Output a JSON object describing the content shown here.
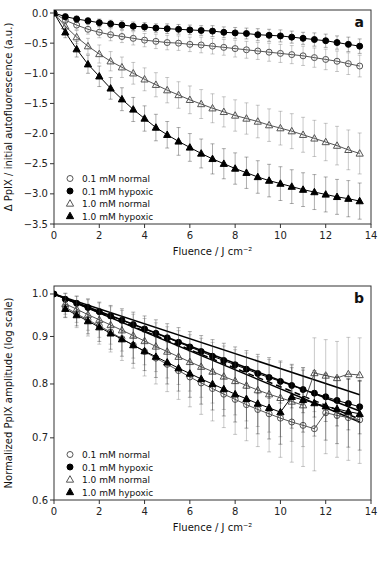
{
  "chart_data": [
    {
      "type": "line",
      "title": "a",
      "y_label": "Δ PpIX / initial autofluorescence (a.u.)",
      "x_label": "Fluence / J cm⁻²",
      "xlim": [
        0,
        14
      ],
      "ylim": [
        -3.5,
        0.05
      ],
      "xticks": [
        0,
        2,
        4,
        6,
        8,
        10,
        12,
        14
      ],
      "yticks": [
        {
          "value": 0.0,
          "label": "0.0"
        },
        {
          "value": -0.5,
          "label": "−0.5"
        },
        {
          "value": -1.0,
          "label": "−1.0"
        },
        {
          "value": -1.5,
          "label": "−1.5"
        },
        {
          "value": -2.0,
          "label": "−2.0"
        },
        {
          "value": -2.5,
          "label": "−2.5"
        },
        {
          "value": -3.0,
          "label": "−3.0"
        },
        {
          "value": -3.5,
          "label": "−3.5"
        }
      ],
      "legend": "lower left",
      "series": [
        {
          "name": "0.1 mM normal",
          "color": "#555555",
          "marker": "circle-open",
          "x": [
            0.0,
            0.5,
            1.0,
            1.5,
            2.0,
            2.5,
            3.0,
            3.5,
            4.0,
            4.5,
            5.0,
            5.5,
            6.0,
            6.5,
            7.0,
            7.5,
            8.0,
            8.5,
            9.0,
            9.5,
            10.0,
            10.5,
            11.0,
            11.5,
            12.0,
            12.5,
            13.0,
            13.5
          ],
          "values": [
            0.0,
            -0.12,
            -0.2,
            -0.27,
            -0.32,
            -0.36,
            -0.39,
            -0.42,
            -0.45,
            -0.47,
            -0.49,
            -0.5,
            -0.52,
            -0.53,
            -0.55,
            -0.57,
            -0.59,
            -0.61,
            -0.63,
            -0.65,
            -0.67,
            -0.69,
            -0.71,
            -0.74,
            -0.77,
            -0.8,
            -0.84,
            -0.88
          ],
          "errors": [
            0.0,
            0.05,
            0.07,
            0.08,
            0.09,
            0.1,
            0.1,
            0.11,
            0.11,
            0.12,
            0.12,
            0.12,
            0.12,
            0.13,
            0.13,
            0.13,
            0.14,
            0.14,
            0.14,
            0.15,
            0.15,
            0.15,
            0.16,
            0.16,
            0.17,
            0.17,
            0.18,
            0.18
          ]
        },
        {
          "name": "0.1 mM hypoxic",
          "color": "#000000",
          "marker": "circle",
          "x": [
            0.0,
            0.5,
            1.0,
            1.5,
            2.0,
            2.5,
            3.0,
            3.5,
            4.0,
            4.5,
            5.0,
            5.5,
            6.0,
            6.5,
            7.0,
            7.5,
            8.0,
            8.5,
            9.0,
            9.5,
            10.0,
            10.5,
            11.0,
            11.5,
            12.0,
            12.5,
            13.0,
            13.5
          ],
          "values": [
            0.0,
            -0.06,
            -0.1,
            -0.13,
            -0.16,
            -0.18,
            -0.2,
            -0.22,
            -0.23,
            -0.25,
            -0.26,
            -0.27,
            -0.28,
            -0.29,
            -0.3,
            -0.32,
            -0.33,
            -0.34,
            -0.36,
            -0.37,
            -0.38,
            -0.4,
            -0.42,
            -0.44,
            -0.46,
            -0.49,
            -0.52,
            -0.55
          ],
          "errors": [
            0.0,
            0.04,
            0.05,
            0.05,
            0.06,
            0.06,
            0.07,
            0.07,
            0.07,
            0.07,
            0.08,
            0.08,
            0.08,
            0.08,
            0.09,
            0.09,
            0.09,
            0.09,
            0.1,
            0.1,
            0.1,
            0.1,
            0.1,
            0.11,
            0.11,
            0.11,
            0.12,
            0.12
          ]
        },
        {
          "name": "1.0 mM normal",
          "color": "#555555",
          "marker": "triangle-open",
          "x": [
            0.0,
            0.5,
            1.0,
            1.5,
            2.0,
            2.5,
            3.0,
            3.5,
            4.0,
            4.5,
            5.0,
            5.5,
            6.0,
            6.5,
            7.0,
            7.5,
            8.0,
            8.5,
            9.0,
            9.5,
            10.0,
            10.5,
            11.0,
            11.5,
            12.0,
            12.5,
            13.0,
            13.5
          ],
          "values": [
            0.0,
            -0.22,
            -0.4,
            -0.55,
            -0.68,
            -0.8,
            -0.9,
            -1.0,
            -1.1,
            -1.19,
            -1.28,
            -1.36,
            -1.44,
            -1.51,
            -1.58,
            -1.64,
            -1.7,
            -1.75,
            -1.8,
            -1.86,
            -1.91,
            -1.96,
            -2.02,
            -2.08,
            -2.14,
            -2.2,
            -2.27,
            -2.33
          ],
          "errors": [
            0.0,
            0.08,
            0.11,
            0.13,
            0.15,
            0.16,
            0.17,
            0.18,
            0.19,
            0.2,
            0.21,
            0.22,
            0.23,
            0.24,
            0.24,
            0.25,
            0.26,
            0.26,
            0.27,
            0.27,
            0.28,
            0.29,
            0.29,
            0.3,
            0.31,
            0.32,
            0.33,
            0.34
          ]
        },
        {
          "name": "1.0 mM hypoxic",
          "color": "#000000",
          "marker": "triangle",
          "x": [
            0.0,
            0.5,
            1.0,
            1.5,
            2.0,
            2.5,
            3.0,
            3.5,
            4.0,
            4.5,
            5.0,
            5.5,
            6.0,
            6.5,
            7.0,
            7.5,
            8.0,
            8.5,
            9.0,
            9.5,
            10.0,
            10.5,
            11.0,
            11.5,
            12.0,
            12.5,
            13.0,
            13.5
          ],
          "values": [
            0.0,
            -0.32,
            -0.6,
            -0.85,
            -1.05,
            -1.25,
            -1.43,
            -1.6,
            -1.75,
            -1.9,
            -2.02,
            -2.13,
            -2.23,
            -2.33,
            -2.42,
            -2.5,
            -2.58,
            -2.65,
            -2.72,
            -2.78,
            -2.83,
            -2.88,
            -2.93,
            -2.97,
            -3.01,
            -3.05,
            -3.08,
            -3.12
          ],
          "errors": [
            0.0,
            0.09,
            0.13,
            0.15,
            0.17,
            0.18,
            0.19,
            0.2,
            0.21,
            0.22,
            0.22,
            0.23,
            0.23,
            0.24,
            0.25,
            0.25,
            0.26,
            0.26,
            0.27,
            0.27,
            0.28,
            0.28,
            0.28,
            0.29,
            0.29,
            0.29,
            0.3,
            0.3
          ]
        }
      ]
    },
    {
      "type": "line",
      "title": "b",
      "y_label": "Normalized PpIX amplitude (log scale)",
      "x_label": "Fluence / J cm⁻²",
      "log": "y",
      "xlim": [
        0,
        14
      ],
      "ylim": [
        0.6,
        1.02
      ],
      "xticks": [
        0,
        2,
        4,
        6,
        8,
        10,
        12,
        14
      ],
      "yticks": [
        0.6,
        0.7,
        0.8,
        0.9,
        {
          "value": 1.0,
          "label": "1.0"
        }
      ],
      "legend": "lower left",
      "fits": [
        {
          "x": [
            0.0,
            13.5
          ],
          "values": [
            1.0,
            0.7331
          ],
          "color": "#000000",
          "line_style": "dashed"
        },
        {
          "x": [
            0.0,
            13.5
          ],
          "values": [
            1.0,
            0.779
          ],
          "color": "#000000",
          "line_style": "solid"
        },
        {
          "x": [
            0.0,
            13.5
          ],
          "values": [
            1.0,
            0.7481
          ],
          "color": "#000000",
          "line_style": "solid"
        },
        {
          "x": [
            0.0,
            13.5
          ],
          "values": [
            1.0,
            0.7281
          ],
          "color": "#000000",
          "line_style": "solid"
        }
      ],
      "series": [
        {
          "name": "0.1 mM normal",
          "color": "#555555",
          "marker": "circle-open",
          "x": [
            0.5,
            1.0,
            1.5,
            2.0,
            2.5,
            3.0,
            3.5,
            4.0,
            4.5,
            5.0,
            5.5,
            6.0,
            6.5,
            7.0,
            7.5,
            8.0,
            8.5,
            9.0,
            9.5,
            10.0,
            10.5,
            11.0,
            11.5,
            12.0,
            12.5,
            13.0,
            13.5
          ],
          "values": [
            0.968,
            0.952,
            0.938,
            0.924,
            0.91,
            0.895,
            0.881,
            0.867,
            0.853,
            0.84,
            0.827,
            0.814,
            0.802,
            0.791,
            0.78,
            0.77,
            0.76,
            0.751,
            0.743,
            0.735,
            0.728,
            0.722,
            0.716,
            0.745,
            0.74,
            0.736,
            0.732
          ],
          "errors": [
            0.025,
            0.032,
            0.037,
            0.041,
            0.044,
            0.047,
            0.049,
            0.051,
            0.053,
            0.055,
            0.057,
            0.058,
            0.06,
            0.061,
            0.062,
            0.064,
            0.065,
            0.066,
            0.067,
            0.068,
            0.069,
            0.07,
            0.071,
            0.072,
            0.073,
            0.074,
            0.075
          ]
        },
        {
          "name": "0.1 mM hypoxic",
          "color": "#000000",
          "marker": "circle",
          "x": [
            0.5,
            1.0,
            1.5,
            2.0,
            2.5,
            3.0,
            3.5,
            4.0,
            4.5,
            5.0,
            5.5,
            6.0,
            6.5,
            7.0,
            7.5,
            8.0,
            8.5,
            9.0,
            9.5,
            10.0,
            10.5,
            11.0,
            11.5,
            12.0,
            12.5,
            13.0,
            13.5
          ],
          "values": [
            0.987,
            0.977,
            0.967,
            0.957,
            0.947,
            0.937,
            0.927,
            0.917,
            0.907,
            0.897,
            0.887,
            0.877,
            0.867,
            0.857,
            0.848,
            0.839,
            0.83,
            0.821,
            0.813,
            0.805,
            0.797,
            0.789,
            0.782,
            0.775,
            0.768,
            0.762,
            0.756
          ],
          "errors": [
            0.015,
            0.018,
            0.021,
            0.023,
            0.025,
            0.027,
            0.029,
            0.03,
            0.031,
            0.032,
            0.033,
            0.034,
            0.035,
            0.036,
            0.037,
            0.038,
            0.039,
            0.04,
            0.041,
            0.042,
            0.043,
            0.044,
            0.045,
            0.046,
            0.047,
            0.048,
            0.049
          ]
        },
        {
          "name": "1.0 mM normal",
          "color": "#555555",
          "marker": "triangle-open",
          "x": [
            0.5,
            1.0,
            1.5,
            2.0,
            2.5,
            3.0,
            3.5,
            4.0,
            4.5,
            5.0,
            5.5,
            6.0,
            6.5,
            7.0,
            7.5,
            8.0,
            8.5,
            9.0,
            9.5,
            10.0,
            10.5,
            11.0,
            11.5,
            12.0,
            12.5,
            13.0,
            13.5
          ],
          "values": [
            0.976,
            0.963,
            0.95,
            0.938,
            0.926,
            0.914,
            0.902,
            0.89,
            0.878,
            0.867,
            0.856,
            0.845,
            0.835,
            0.825,
            0.815,
            0.806,
            0.797,
            0.788,
            0.78,
            0.773,
            0.766,
            0.759,
            0.822,
            0.817,
            0.812,
            0.82,
            0.818
          ],
          "errors": [
            0.025,
            0.031,
            0.036,
            0.04,
            0.043,
            0.046,
            0.049,
            0.051,
            0.053,
            0.055,
            0.057,
            0.059,
            0.061,
            0.062,
            0.064,
            0.065,
            0.067,
            0.068,
            0.07,
            0.071,
            0.072,
            0.074,
            0.075,
            0.076,
            0.077,
            0.078,
            0.079
          ]
        },
        {
          "name": "1.0 mM hypoxic",
          "color": "#000000",
          "marker": "triangle",
          "x": [
            0.5,
            1.0,
            1.5,
            2.0,
            2.5,
            3.0,
            3.5,
            4.0,
            4.5,
            5.0,
            5.5,
            6.0,
            6.5,
            7.0,
            7.5,
            8.0,
            8.5,
            9.0,
            9.5,
            10.0,
            10.5,
            11.0,
            11.5,
            12.0,
            12.5,
            13.0,
            13.5
          ],
          "values": [
            0.964,
            0.949,
            0.935,
            0.921,
            0.907,
            0.894,
            0.881,
            0.868,
            0.856,
            0.844,
            0.832,
            0.821,
            0.81,
            0.8,
            0.79,
            0.78,
            0.771,
            0.762,
            0.754,
            0.746,
            0.775,
            0.769,
            0.763,
            0.757,
            0.752,
            0.747,
            0.743
          ],
          "errors": [
            0.02,
            0.025,
            0.029,
            0.032,
            0.035,
            0.037,
            0.039,
            0.041,
            0.043,
            0.044,
            0.046,
            0.047,
            0.049,
            0.05,
            0.051,
            0.052,
            0.054,
            0.055,
            0.056,
            0.057,
            0.058,
            0.059,
            0.06,
            0.061,
            0.062,
            0.063,
            0.064
          ]
        }
      ],
      "extra_points": {
        "x": [
          0.0
        ],
        "values": [
          1.0
        ],
        "color": "#000000",
        "marker": "circle"
      }
    }
  ]
}
